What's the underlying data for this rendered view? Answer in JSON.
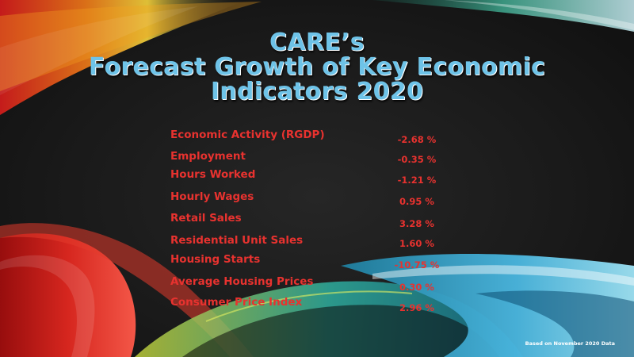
{
  "slide": {
    "title_lines": [
      "CARE’s",
      "Forecast Growth of Key Economic",
      "Indicators 2020"
    ],
    "indicators": [
      {
        "label": "Economic Activity (RGDP)",
        "value": "-2.68 %"
      },
      {
        "label": "Employment",
        "value": "-0.35 %"
      },
      {
        "label": "Hours Worked",
        "value": "-1.21 %"
      },
      {
        "label": "Hourly Wages",
        "value": "0.95 %"
      },
      {
        "label": "Retail Sales",
        "value": "3.28 %"
      },
      {
        "label": "Residential Unit Sales",
        "value": "1.60 %"
      },
      {
        "label": "Housing Starts",
        "value": "-10.75 %"
      },
      {
        "label": "Average Housing Prices",
        "value": "0.30 %"
      },
      {
        "label": "Consumer Price Index",
        "value": "2.96 %"
      }
    ],
    "footnote": "Based on November 2020 Data",
    "colors": {
      "title": "#6ec3e8",
      "indicator_text": "#e8322f",
      "background": "#1a1a1a"
    }
  }
}
